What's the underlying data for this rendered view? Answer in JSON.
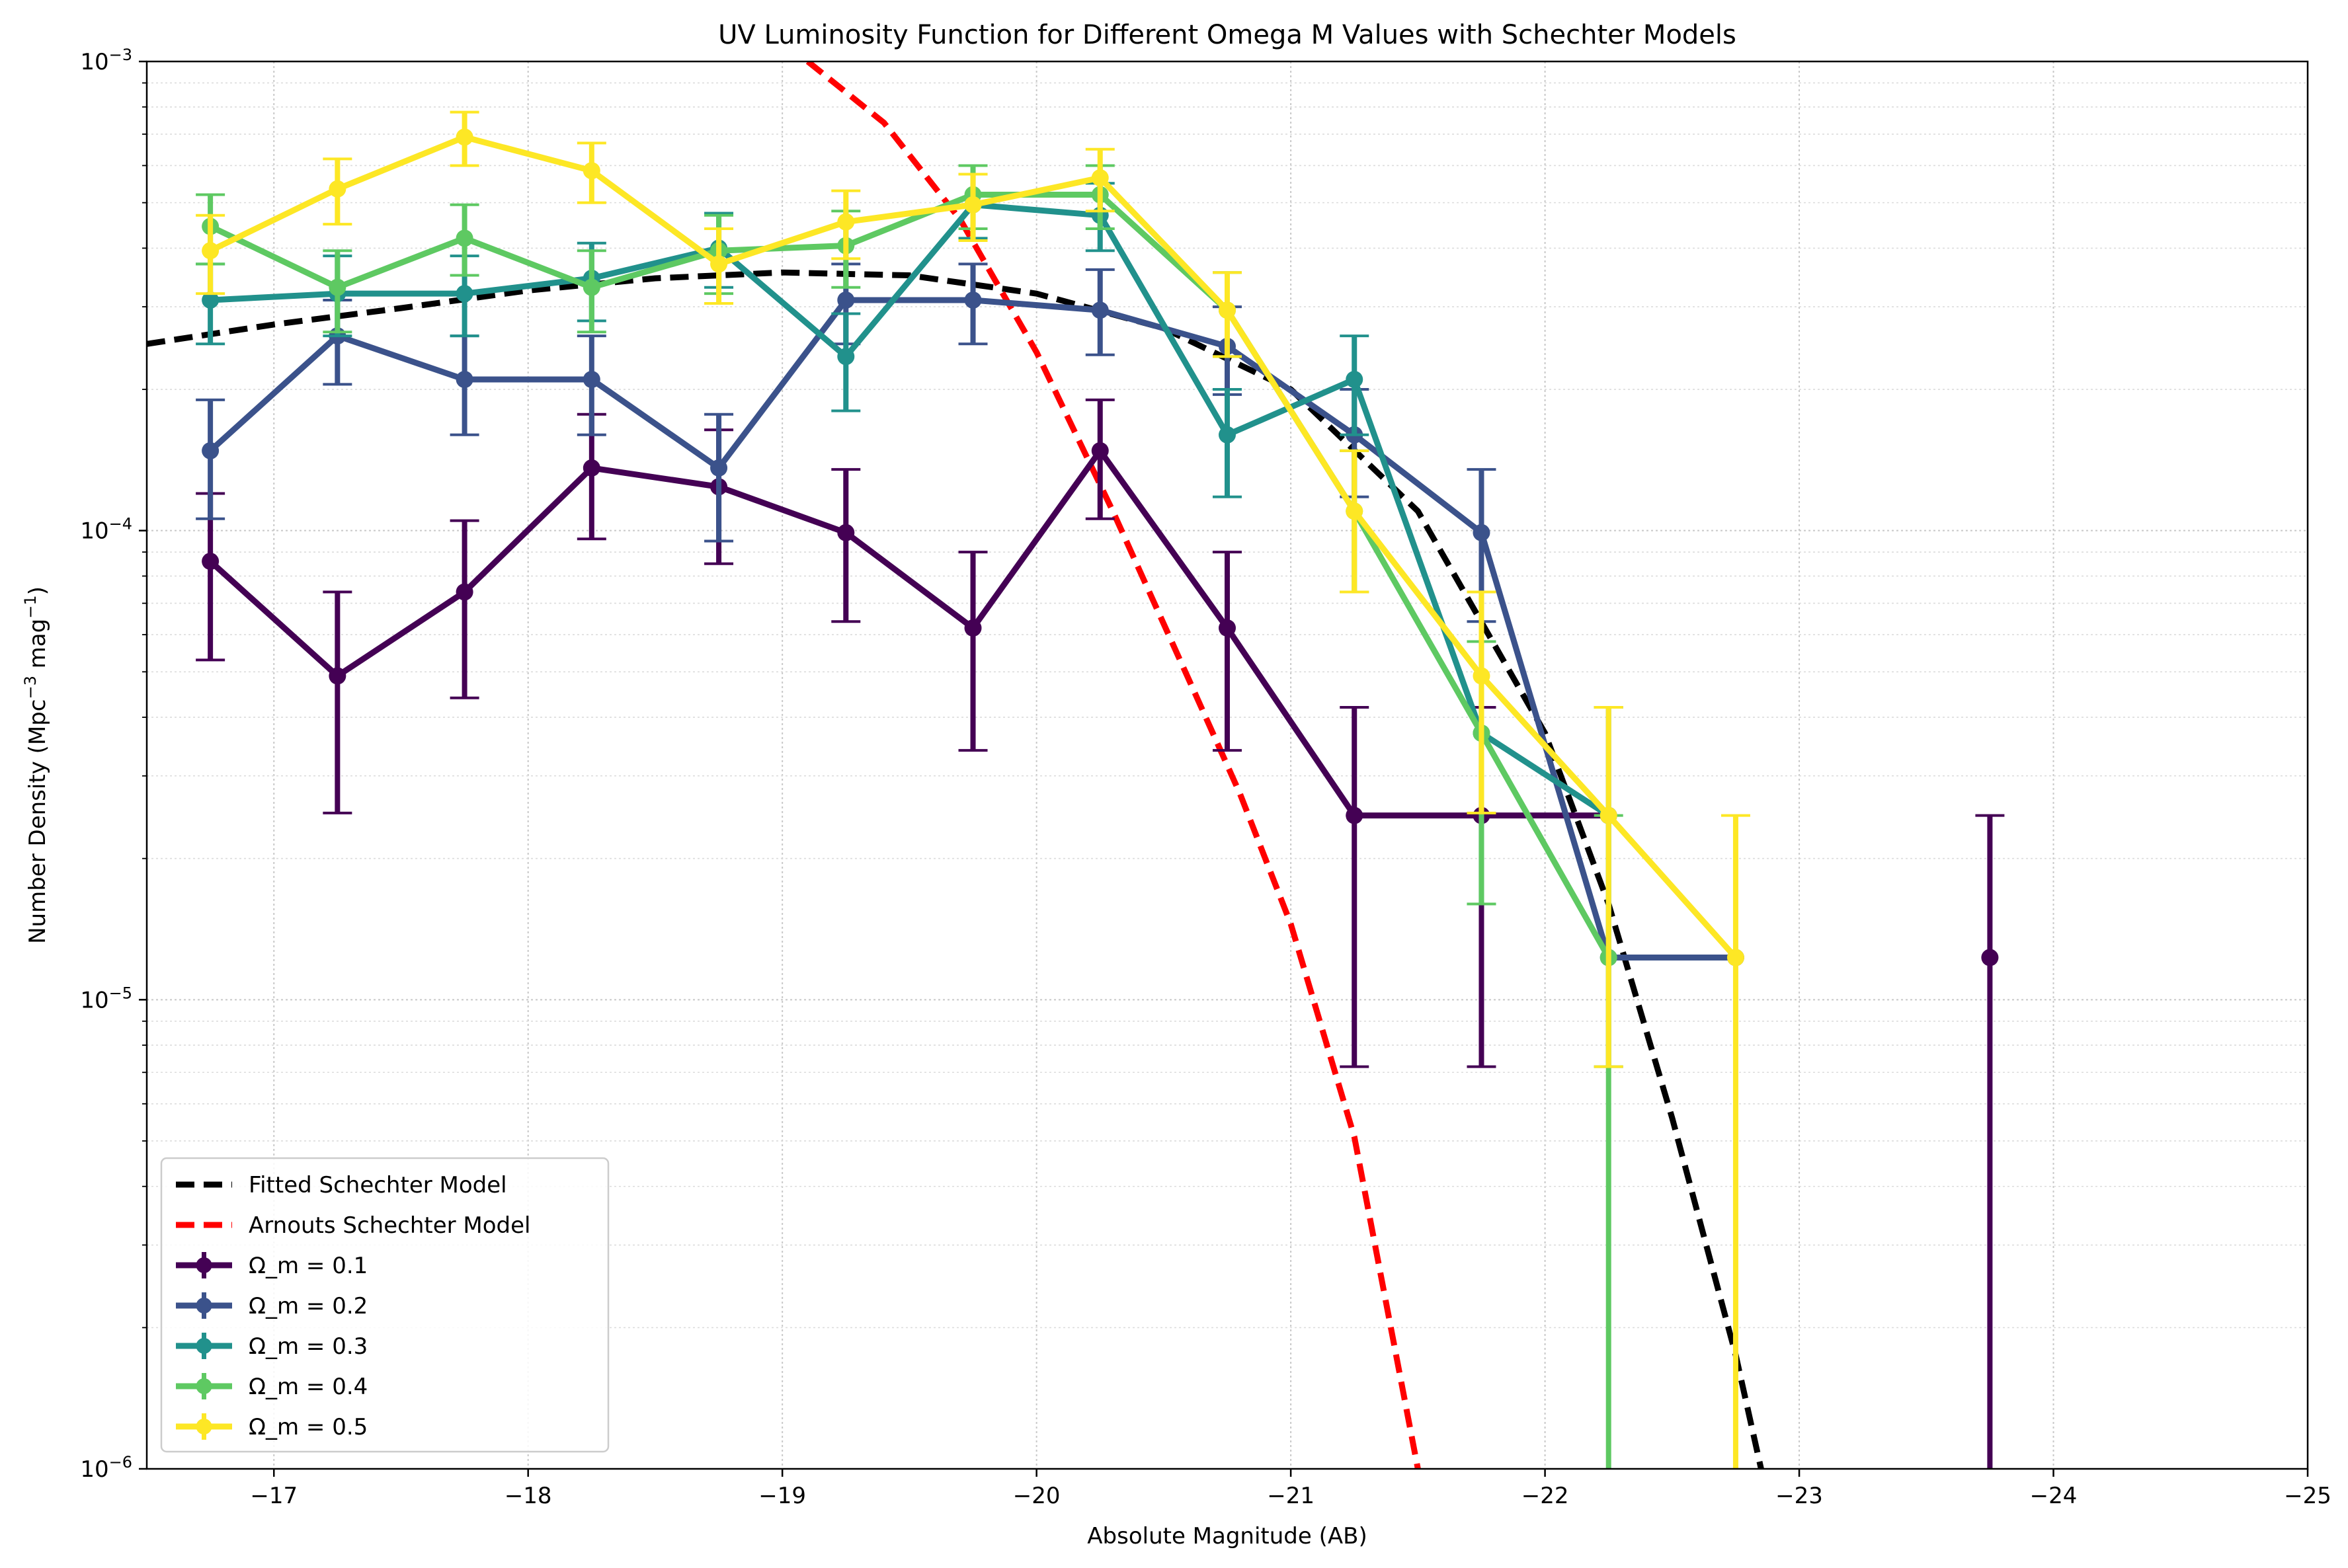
{
  "chart_data": {
    "type": "line",
    "title": "UV Luminosity Function for Different Omega M Values with Schechter Models",
    "xlabel": "Absolute Magnitude (AB)",
    "ylabel_main": "Number Density (Mpc",
    "ylabel_sup1": "−3",
    "ylabel_mid": " mag",
    "ylabel_sup2": "−1",
    "ylabel_end": ")",
    "ylabel": "Number Density (Mpc−3 mag−1)",
    "x_scale": "linear",
    "x_inverted": true,
    "xlim": [
      -16.5,
      -25
    ],
    "y_scale": "log",
    "ylim": [
      1e-06,
      0.001
    ],
    "grid": true,
    "legend_position": "lower-left",
    "x_ticks": [
      -17,
      -18,
      -19,
      -20,
      -21,
      -22,
      -23,
      -24,
      -25
    ],
    "x_tick_labels": [
      "−17",
      "−18",
      "−19",
      "−20",
      "−21",
      "−22",
      "−23",
      "−24",
      "−25"
    ],
    "y_ticks": [
      {
        "value": 0.001,
        "base": "10",
        "exp": "−3"
      },
      {
        "value": 0.0001,
        "base": "10",
        "exp": "−4"
      },
      {
        "value": 1e-05,
        "base": "10",
        "exp": "−5"
      },
      {
        "value": 1e-06,
        "base": "10",
        "exp": "−6"
      }
    ],
    "x_bins": [
      -16.75,
      -17.25,
      -17.75,
      -18.25,
      -18.75,
      -19.25,
      -19.75,
      -20.25,
      -20.75,
      -21.25,
      -21.75,
      -22.25,
      -22.75,
      -23.25,
      -23.75
    ],
    "models": [
      {
        "name": "Fitted Schechter Model",
        "color": "#000000",
        "style": "dashed",
        "x": [
          -16.5,
          -17.0,
          -17.5,
          -18.0,
          -18.5,
          -19.0,
          -19.5,
          -20.0,
          -20.5,
          -21.0,
          -21.5,
          -22.0,
          -22.25,
          -22.5,
          -22.75,
          -22.85
        ],
        "y": [
          0.00025,
          0.000275,
          0.000298,
          0.000325,
          0.000345,
          0.000355,
          0.00035,
          0.00032,
          0.00027,
          0.0002,
          0.00011,
          3.7e-05,
          1.6e-05,
          5.6e-06,
          1.75e-06,
          1e-06
        ]
      },
      {
        "name": "Arnouts Schechter Model",
        "color": "#ff0000",
        "style": "dashed",
        "x": [
          -19.1,
          -19.4,
          -19.7,
          -20.0,
          -20.3,
          -20.6,
          -20.8,
          -21.0,
          -21.25,
          -21.5
        ],
        "y": [
          0.001,
          0.00074,
          0.00046,
          0.00024,
          0.00011,
          4.8e-05,
          2.75e-05,
          1.45e-05,
          5.1e-06,
          1e-06
        ]
      }
    ],
    "series": [
      {
        "name": "Ω_m = 0.1",
        "color": "#440154",
        "x": [
          -16.75,
          -17.25,
          -17.75,
          -18.25,
          -18.75,
          -19.25,
          -19.75,
          -20.25,
          -20.75,
          -21.25,
          -21.75,
          -22.25,
          -23.75
        ],
        "y": [
          8.6e-05,
          4.9e-05,
          7.4e-05,
          0.000136,
          0.000124,
          9.9e-05,
          6.2e-05,
          0.000148,
          6.2e-05,
          2.47e-05,
          2.47e-05,
          2.47e-05,
          1.23e-05
        ],
        "err_lo": [
          5.3e-05,
          2.5e-05,
          4.4e-05,
          9.6e-05,
          8.5e-05,
          6.4e-05,
          3.4e-05,
          0.000106,
          3.4e-05,
          7.2e-06,
          7.2e-06,
          null,
          1e-07
        ],
        "err_hi": [
          0.00012,
          7.4e-05,
          0.000105,
          0.000177,
          0.000164,
          0.000135,
          9e-05,
          0.00019,
          9e-05,
          4.2e-05,
          4.2e-05,
          null,
          2.47e-05
        ],
        "connect": [
          true,
          true,
          true,
          true,
          true,
          true,
          true,
          true,
          true,
          true,
          true,
          true,
          false
        ]
      },
      {
        "name": "Ω_m = 0.2",
        "color": "#3b528b",
        "x": [
          -16.75,
          -17.25,
          -17.75,
          -18.25,
          -18.75,
          -19.25,
          -19.75,
          -20.25,
          -20.75,
          -21.25,
          -21.75,
          -22.25,
          -22.75
        ],
        "y": [
          0.000148,
          0.00026,
          0.00021,
          0.00021,
          0.000136,
          0.00031,
          0.00031,
          0.000295,
          0.000247,
          0.00016,
          9.9e-05,
          1.23e-05,
          1.23e-05
        ],
        "err_lo": [
          0.000106,
          0.000205,
          0.00016,
          0.00016,
          9.5e-05,
          0.00025,
          0.00025,
          0.000237,
          0.000195,
          0.000118,
          6.4e-05,
          null,
          null
        ],
        "err_hi": [
          0.00019,
          0.00031,
          0.00026,
          0.00026,
          0.000177,
          0.00037,
          0.00037,
          0.00036,
          0.0003,
          0.0002,
          0.000135,
          null,
          null
        ],
        "connect": [
          true,
          true,
          true,
          true,
          true,
          true,
          true,
          true,
          true,
          true,
          true,
          true,
          true
        ]
      },
      {
        "name": "Ω_m = 0.3",
        "color": "#21918c",
        "x": [
          -16.75,
          -17.25,
          -17.75,
          -18.25,
          -18.75,
          -19.25,
          -19.75,
          -20.25,
          -20.75,
          -21.25,
          -21.75,
          -22.25
        ],
        "y": [
          0.00031,
          0.00032,
          0.00032,
          0.000345,
          0.0004,
          0.000235,
          0.000495,
          0.00047,
          0.00016,
          0.00021,
          3.7e-05,
          2.47e-05
        ],
        "err_lo": [
          0.00025,
          0.00026,
          0.00026,
          0.00028,
          0.00033,
          0.00018,
          0.00042,
          0.000395,
          0.000118,
          0.00016,
          1.6e-05,
          7.2e-06
        ],
        "err_hi": [
          0.00037,
          0.000385,
          0.000385,
          0.00041,
          0.000475,
          0.00029,
          0.000575,
          0.00055,
          0.0002,
          0.00026,
          5.8e-05,
          4.2e-05
        ],
        "connect": [
          true,
          true,
          true,
          true,
          true,
          true,
          true,
          true,
          true,
          true,
          true,
          true
        ]
      },
      {
        "name": "Ω_m = 0.4",
        "color": "#5ec962",
        "x": [
          -16.75,
          -17.25,
          -17.75,
          -18.25,
          -18.75,
          -19.25,
          -19.75,
          -20.25,
          -20.75,
          -21.25,
          -21.75,
          -22.25
        ],
        "y": [
          0.000445,
          0.00033,
          0.00042,
          0.00033,
          0.000395,
          0.000405,
          0.00052,
          0.00052,
          0.000295,
          0.00011,
          3.7e-05,
          1.23e-05
        ],
        "err_lo": [
          0.00037,
          0.000265,
          0.00035,
          0.000265,
          0.00032,
          0.00033,
          0.00044,
          0.00044,
          0.000235,
          7.4e-05,
          1.6e-05,
          1e-07
        ],
        "err_hi": [
          0.00052,
          0.000395,
          0.000495,
          0.000395,
          0.00047,
          0.00048,
          0.0006,
          0.0006,
          0.000355,
          0.000148,
          5.8e-05,
          2.47e-05
        ],
        "connect": [
          true,
          true,
          true,
          true,
          true,
          true,
          true,
          true,
          true,
          true,
          true,
          true
        ]
      },
      {
        "name": "Ω_m = 0.5",
        "color": "#fde725",
        "x": [
          -16.75,
          -17.25,
          -17.75,
          -18.25,
          -18.75,
          -19.25,
          -19.75,
          -20.25,
          -20.75,
          -21.25,
          -21.75,
          -22.25,
          -22.75
        ],
        "y": [
          0.000395,
          0.000535,
          0.00069,
          0.000585,
          0.00037,
          0.000455,
          0.000495,
          0.000565,
          0.000295,
          0.00011,
          4.9e-05,
          2.47e-05,
          1.23e-05
        ],
        "err_lo": [
          0.00032,
          0.00045,
          0.0006,
          0.0005,
          0.000305,
          0.00038,
          0.000415,
          0.00048,
          0.000235,
          7.4e-05,
          2.5e-05,
          7.2e-06,
          1e-07
        ],
        "err_hi": [
          0.00047,
          0.00062,
          0.00078,
          0.00067,
          0.00044,
          0.00053,
          0.000575,
          0.00065,
          0.000355,
          0.000148,
          7.4e-05,
          4.2e-05,
          2.47e-05
        ],
        "connect": [
          true,
          true,
          true,
          true,
          true,
          true,
          true,
          true,
          true,
          true,
          true,
          true,
          true
        ]
      }
    ],
    "legend": {
      "model_labels": [
        "Fitted Schechter Model",
        "Arnouts Schechter Model"
      ],
      "series_labels": [
        "Ω_m = 0.1",
        "Ω_m = 0.2",
        "Ω_m = 0.3",
        "Ω_m = 0.4",
        "Ω_m = 0.5"
      ]
    }
  }
}
